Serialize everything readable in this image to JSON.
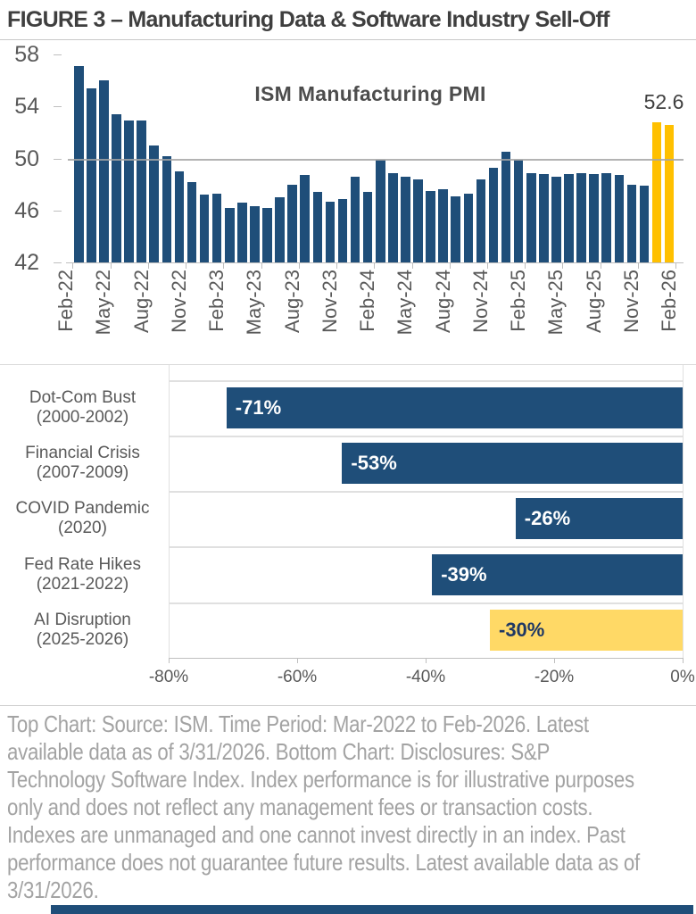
{
  "figure_title": "FIGURE 3 – Manufacturing Data & Software Industry Sell-Off",
  "footnote": "Top Chart: Source: ISM. Time Period: Mar-2022 to Feb-2026. Latest\navailable data as of 3/31/2026. Bottom Chart: Disclosures: S&P\nTechnology Software Index. Index performance is for illustrative purposes\nonly and does not reflect any management fees or transaction costs.\nIndexes are unmanaged and one cannot invest directly in an index. Past\nperformance does not guarantee future results. Latest available data as of\n3/31/2026.",
  "colors": {
    "bar_blue": "#1f4e79",
    "bar_gold": "#ffc000",
    "bar_gold_light": "#ffd966",
    "highlight_text": "#1f3864",
    "axis_text": "#595959",
    "axis_line": "#bfbfbf",
    "grid_light": "#e0e0e0",
    "ref_line": "#a6a6a6",
    "value_text_white": "#ffffff"
  },
  "chart_data": [
    {
      "type": "bar",
      "title": "ISM Manufacturing PMI",
      "annotation": {
        "text": "52.6",
        "applies_to": "Feb-26"
      },
      "x": [
        "Mar-22",
        "Apr-22",
        "May-22",
        "Jun-22",
        "Jul-22",
        "Aug-22",
        "Sep-22",
        "Oct-22",
        "Nov-22",
        "Dec-22",
        "Jan-23",
        "Feb-23",
        "Mar-23",
        "Apr-23",
        "May-23",
        "Jun-23",
        "Jul-23",
        "Aug-23",
        "Sep-23",
        "Oct-23",
        "Nov-23",
        "Dec-23",
        "Jan-24",
        "Feb-24",
        "Mar-24",
        "Apr-24",
        "May-24",
        "Jun-24",
        "Jul-24",
        "Aug-24",
        "Sep-24",
        "Oct-24",
        "Nov-24",
        "Dec-24",
        "Jan-25",
        "Feb-25",
        "Mar-25",
        "Apr-25",
        "May-25",
        "Jun-25",
        "Jul-25",
        "Aug-25",
        "Sep-25",
        "Oct-25",
        "Nov-25",
        "Dec-25",
        "Jan-26",
        "Feb-26"
      ],
      "values": [
        57.1,
        55.4,
        56.0,
        53.4,
        52.9,
        52.9,
        51.0,
        50.2,
        49.0,
        48.2,
        47.2,
        47.3,
        46.2,
        46.6,
        46.3,
        46.2,
        47.0,
        48.0,
        48.7,
        47.4,
        46.7,
        46.9,
        48.6,
        47.4,
        49.9,
        48.9,
        48.6,
        48.4,
        47.5,
        47.6,
        47.1,
        47.3,
        48.4,
        49.3,
        50.5,
        49.9,
        48.9,
        48.8,
        48.6,
        48.8,
        48.9,
        48.8,
        48.9,
        48.7,
        48.0,
        47.9,
        52.8,
        52.6
      ],
      "x_tick_labels": [
        "Feb-22",
        "May-22",
        "Aug-22",
        "Nov-22",
        "Feb-23",
        "May-23",
        "Aug-23",
        "Nov-23",
        "Feb-24",
        "May-24",
        "Aug-24",
        "Nov-24",
        "Feb-25",
        "May-25",
        "Aug-25",
        "Nov-25",
        "Feb-26"
      ],
      "y_ticks": [
        58,
        54,
        50,
        46,
        42
      ],
      "ylim": [
        42,
        58
      ],
      "reference_line": 50,
      "highlight_last_n": 2,
      "grid": "horizontal reference line at 50 only",
      "legend": "none"
    },
    {
      "type": "bar-horizontal",
      "rows": [
        {
          "label": [
            "Dot-Com Bust",
            "(2000-2002)"
          ],
          "value": -71,
          "value_label": "-71%",
          "highlight": false
        },
        {
          "label": [
            "Financial Crisis",
            "(2007-2009)"
          ],
          "value": -53,
          "value_label": "-53%",
          "highlight": false
        },
        {
          "label": [
            "COVID Pandemic",
            "(2020)"
          ],
          "value": -26,
          "value_label": "-26%",
          "highlight": false
        },
        {
          "label": [
            "Fed Rate Hikes",
            "(2021-2022)"
          ],
          "value": -39,
          "value_label": "-39%",
          "highlight": false
        },
        {
          "label": [
            "AI Disruption",
            "(2025-2026)"
          ],
          "value": -30,
          "value_label": "-30%",
          "highlight": true
        }
      ],
      "xlim": [
        -80,
        0
      ],
      "x_tick_labels": [
        "-80%",
        "-60%",
        "-40%",
        "-20%",
        "0%"
      ],
      "grid": "row separator lines",
      "legend": "none"
    }
  ]
}
